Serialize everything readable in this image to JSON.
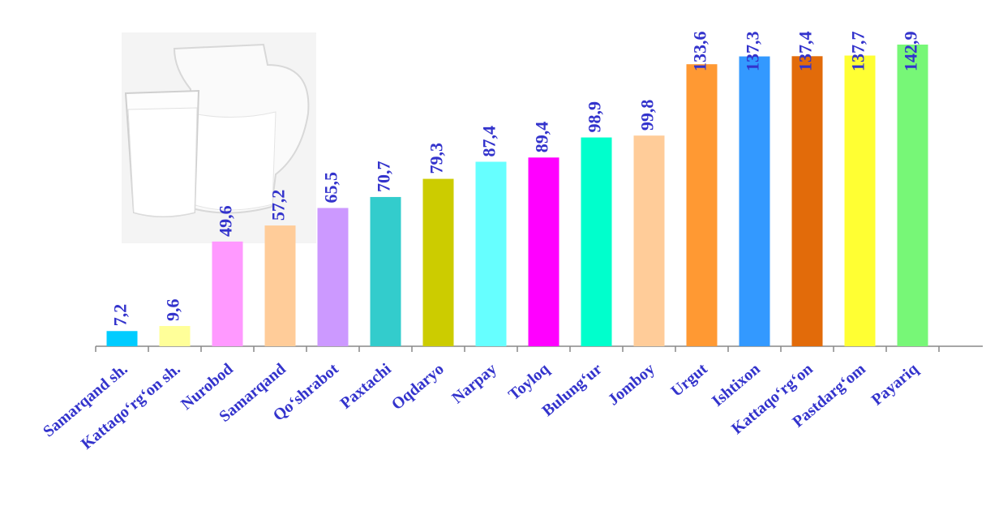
{
  "chart_data": {
    "type": "bar",
    "categories": [
      "Samarqand sh.",
      "Kattaqo‘rg‘on sh.",
      "Nurobod",
      "Samarqand",
      "Qo‘shrabot",
      "Paxtachi",
      "Oqdaryo",
      "Narpay",
      "Toyloq",
      "Bulung‘ur",
      "Jomboy",
      "Urgut",
      "Ishtixon",
      "Kattaqo‘rg‘on",
      "Pastdarg‘om",
      "Payariq"
    ],
    "values": [
      7.2,
      9.6,
      49.6,
      57.2,
      65.5,
      70.7,
      79.3,
      87.4,
      89.4,
      98.9,
      99.8,
      133.6,
      137.3,
      137.4,
      137.7,
      142.9
    ],
    "value_labels": [
      "7,2",
      "9,6",
      "49,6",
      "57,2",
      "65,5",
      "70,7",
      "79,3",
      "87,4",
      "89,4",
      "98,9",
      "99,8",
      "133,6",
      "137,3",
      "137,4",
      "137,7",
      "142,9"
    ],
    "colors": [
      "#00ccff",
      "#ffff99",
      "#ff99ff",
      "#ffcc99",
      "#cc99ff",
      "#33cccc",
      "#cccc00",
      "#66ffff",
      "#ff00ff",
      "#00ffcc",
      "#ffcc99",
      "#ff9933",
      "#3399ff",
      "#e26b0a",
      "#ffff33",
      "#77f777"
    ],
    "ylim": [
      0,
      150
    ]
  }
}
